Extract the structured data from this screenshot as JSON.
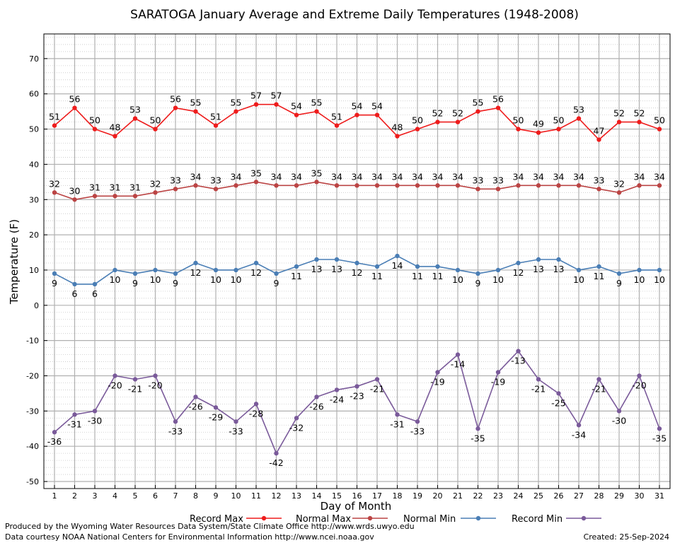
{
  "chart_data": {
    "type": "line",
    "title": "SARATOGA January Average and Extreme Daily Temperatures (1948-2008)",
    "xlabel": "Day of Month",
    "ylabel": "Temperature (F)",
    "x": [
      1,
      2,
      3,
      4,
      5,
      6,
      7,
      8,
      9,
      10,
      11,
      12,
      13,
      14,
      15,
      16,
      17,
      18,
      19,
      20,
      21,
      22,
      23,
      24,
      25,
      26,
      27,
      28,
      29,
      30,
      31
    ],
    "ylim": [
      -52,
      77
    ],
    "yticks": [
      -50,
      -40,
      -30,
      -20,
      -10,
      0,
      10,
      20,
      30,
      40,
      50,
      60,
      70
    ],
    "grid": true,
    "legend_position": "bottom",
    "series": [
      {
        "name": "Record Max",
        "color": "#ee1c1c",
        "values": [
          51,
          56,
          50,
          48,
          53,
          50,
          56,
          55,
          51,
          55,
          57,
          57,
          54,
          55,
          51,
          54,
          54,
          48,
          50,
          52,
          52,
          55,
          56,
          50,
          49,
          50,
          53,
          47,
          52,
          52,
          50
        ]
      },
      {
        "name": "Normal Max",
        "color": "#bb4444",
        "values": [
          32,
          30,
          31,
          31,
          31,
          32,
          33,
          34,
          33,
          34,
          35,
          34,
          34,
          35,
          34,
          34,
          34,
          34,
          34,
          34,
          34,
          33,
          33,
          34,
          34,
          34,
          34,
          33,
          32,
          34,
          34
        ]
      },
      {
        "name": "Normal Min",
        "color": "#4a7eb5",
        "values": [
          9,
          6,
          6,
          10,
          9,
          10,
          9,
          12,
          10,
          10,
          12,
          9,
          11,
          13,
          13,
          12,
          11,
          14,
          11,
          11,
          10,
          9,
          10,
          12,
          13,
          13,
          10,
          11,
          9,
          10,
          10
        ]
      },
      {
        "name": "Record Min",
        "color": "#7a5a9a",
        "values": [
          -36,
          -31,
          -30,
          -20,
          -21,
          -20,
          -33,
          -26,
          -29,
          -33,
          -28,
          -42,
          -32,
          -26,
          -24,
          -23,
          -21,
          -31,
          -33,
          -19,
          -14,
          -35,
          -19,
          -13,
          -21,
          -25,
          -34,
          -21,
          -30,
          -20,
          -35
        ]
      }
    ]
  },
  "footer": {
    "produced_by": "Produced by the Wyoming Water Resources Data System/State Climate Office http://www.wrds.uwyo.edu",
    "courtesy": "Data courtesy NOAA National Centers for Environmental Information http://www.ncei.noaa.gov",
    "created": "Created:  25-Sep-2024"
  }
}
